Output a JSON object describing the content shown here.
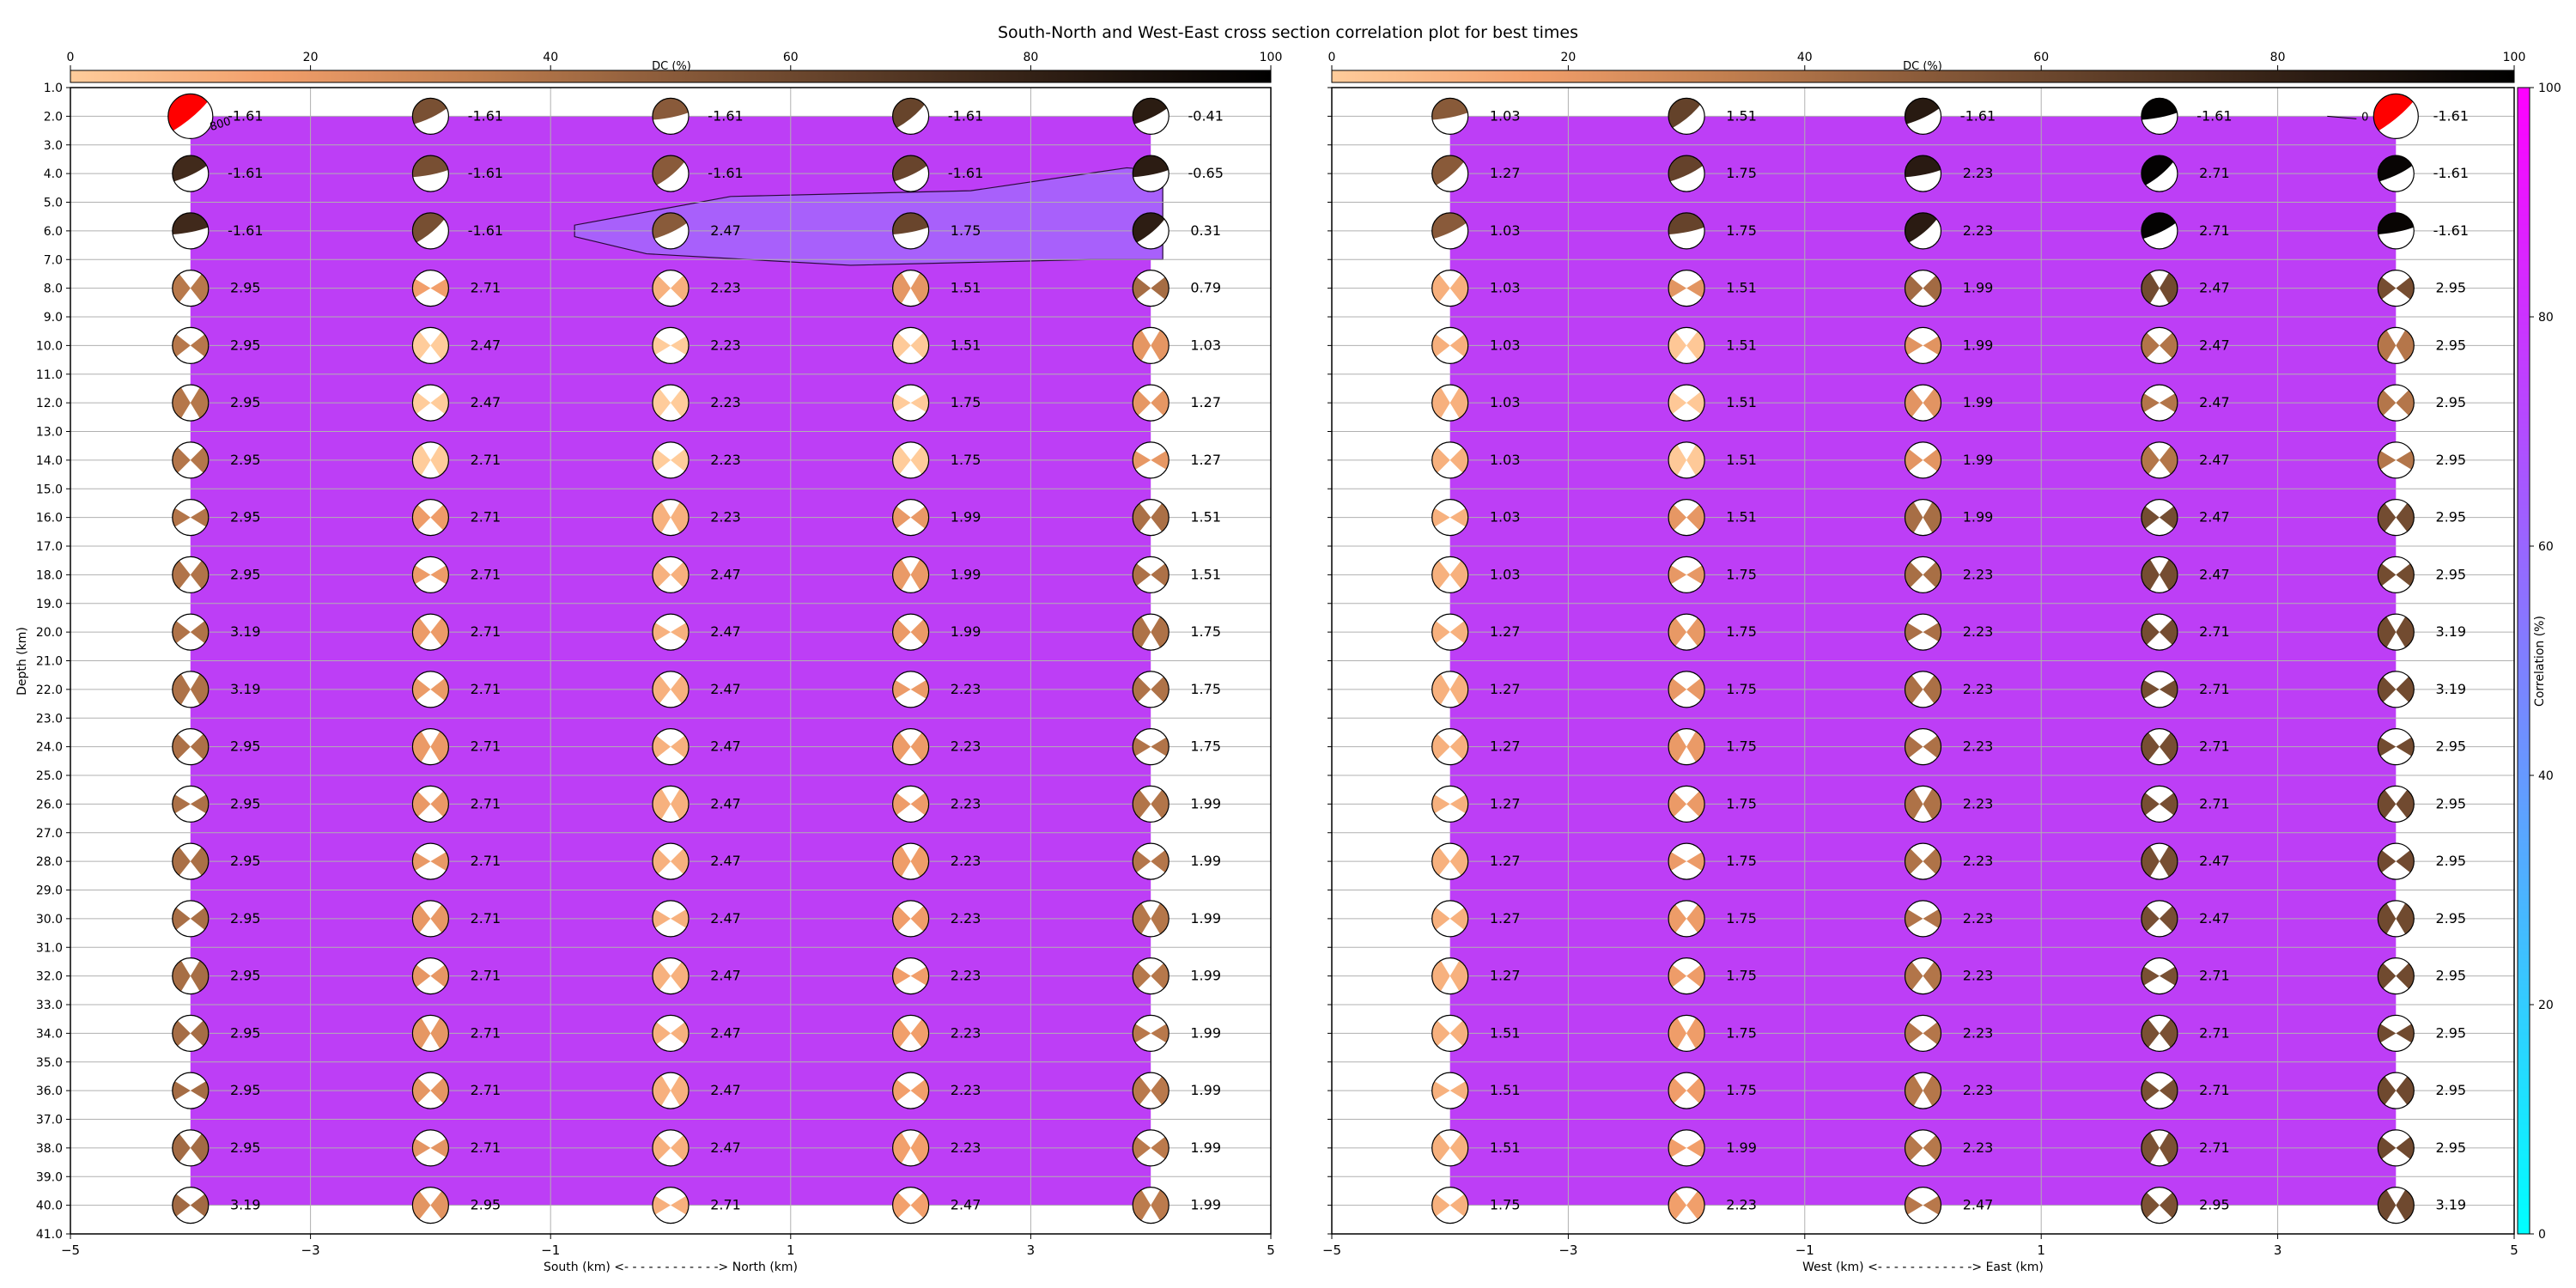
{
  "figure": {
    "title": "South-North and West-East cross section correlation plot for best times"
  },
  "colors": {
    "correlation_fill": "#bd3ef6",
    "contour_fill": "#a860fb",
    "beachball_red": "#ff0000",
    "dc_cmap": [
      "#ffcc9b",
      "#f29f6b",
      "#c27f4f",
      "#8a5b3a",
      "#5a3b26",
      "#2a1b12",
      "#000000"
    ],
    "corr_cmap": [
      "#00ffff",
      "#7f7fff",
      "#ff00ff"
    ]
  },
  "dc_colorbar": {
    "label": "DC (%)",
    "ticks": [
      "0",
      "20",
      "40",
      "60",
      "80",
      "100"
    ]
  },
  "corr_colorbar": {
    "label": "Correlation (%)",
    "ticks": [
      "0",
      "20",
      "40",
      "60",
      "80",
      "100"
    ]
  },
  "chart_data": [
    {
      "type": "scatter",
      "name": "south-north",
      "xlabel": "South (km) <- - - - - - - - - - - -> North (km)",
      "ylabel": "Depth (km)",
      "xlim": [
        -5,
        5
      ],
      "ylim": [
        41,
        1
      ],
      "xticks": [
        -5,
        -3,
        -1,
        1,
        3,
        5
      ],
      "yticks": [
        "1.0",
        "2.0",
        "3.0",
        "4.0",
        "5.0",
        "6.0",
        "7.0",
        "8.0",
        "9.0",
        "10.0",
        "11.0",
        "12.0",
        "13.0",
        "14.0",
        "15.0",
        "16.0",
        "17.0",
        "18.0",
        "19.0",
        "20.0",
        "21.0",
        "22.0",
        "23.0",
        "24.0",
        "25.0",
        "26.0",
        "27.0",
        "28.0",
        "29.0",
        "30.0",
        "31.0",
        "32.0",
        "33.0",
        "34.0",
        "35.0",
        "36.0",
        "37.0",
        "38.0",
        "39.0",
        "40.0",
        "41.0"
      ],
      "x_positions": [
        -4,
        -2,
        0,
        2,
        4
      ],
      "depths": [
        2,
        4,
        6,
        8,
        10,
        12,
        14,
        16,
        18,
        20,
        22,
        24,
        26,
        28,
        30,
        32,
        34,
        36,
        38,
        40
      ],
      "time_shift_labels": [
        [
          "-1.61",
          "-1.61",
          "-1.61",
          "-1.61",
          "-0.41"
        ],
        [
          "-1.61",
          "-1.61",
          "-1.61",
          "-1.61",
          "-0.65"
        ],
        [
          "-1.61",
          "-1.61",
          "2.47",
          "1.75",
          "0.31"
        ],
        [
          "2.95",
          "2.71",
          "2.23",
          "1.51",
          "0.79"
        ],
        [
          "2.95",
          "2.47",
          "2.23",
          "1.51",
          "1.03"
        ],
        [
          "2.95",
          "2.47",
          "2.23",
          "1.75",
          "1.27"
        ],
        [
          "2.95",
          "2.71",
          "2.23",
          "1.75",
          "1.27"
        ],
        [
          "2.95",
          "2.71",
          "2.23",
          "1.99",
          "1.51"
        ],
        [
          "2.95",
          "2.71",
          "2.47",
          "1.99",
          "1.51"
        ],
        [
          "3.19",
          "2.71",
          "2.47",
          "1.99",
          "1.75"
        ],
        [
          "3.19",
          "2.71",
          "2.47",
          "2.23",
          "1.75"
        ],
        [
          "2.95",
          "2.71",
          "2.47",
          "2.23",
          "1.75"
        ],
        [
          "2.95",
          "2.71",
          "2.47",
          "2.23",
          "1.99"
        ],
        [
          "2.95",
          "2.71",
          "2.47",
          "2.23",
          "1.99"
        ],
        [
          "2.95",
          "2.71",
          "2.47",
          "2.23",
          "1.99"
        ],
        [
          "2.95",
          "2.71",
          "2.47",
          "2.23",
          "1.99"
        ],
        [
          "2.95",
          "2.71",
          "2.47",
          "2.23",
          "1.99"
        ],
        [
          "2.95",
          "2.71",
          "2.47",
          "2.23",
          "1.99"
        ],
        [
          "2.95",
          "2.71",
          "2.47",
          "2.23",
          "1.99"
        ],
        [
          "3.19",
          "2.95",
          "2.71",
          "2.47",
          "1.99"
        ]
      ],
      "correlation_region": {
        "x": [
          -4,
          4
        ],
        "depth": [
          2,
          40
        ]
      },
      "contour_label": "800",
      "contour_polygon": [
        [
          -0.8,
          6.2
        ],
        [
          -0.2,
          6.8
        ],
        [
          1.5,
          7.2
        ],
        [
          3.5,
          7.0
        ],
        [
          4.1,
          7.0
        ],
        [
          4.1,
          3.9
        ],
        [
          3.8,
          3.8
        ],
        [
          2.5,
          4.6
        ],
        [
          0.5,
          4.8
        ],
        [
          -0.8,
          5.8
        ]
      ],
      "highlight": {
        "x": -4,
        "depth": 2
      }
    },
    {
      "type": "scatter",
      "name": "west-east",
      "xlabel": "West (km) <- - - - - - - - - - - -> East (km)",
      "xlim": [
        -5,
        5
      ],
      "ylim": [
        41,
        1
      ],
      "xticks": [
        -5,
        -3,
        -1,
        1,
        3,
        5
      ],
      "x_positions": [
        -4,
        -2,
        0,
        2,
        4
      ],
      "depths": [
        2,
        4,
        6,
        8,
        10,
        12,
        14,
        16,
        18,
        20,
        22,
        24,
        26,
        28,
        30,
        32,
        34,
        36,
        38,
        40
      ],
      "time_shift_labels": [
        [
          "1.03",
          "1.51",
          "-1.61",
          "-1.61",
          "-1.61"
        ],
        [
          "1.27",
          "1.75",
          "2.23",
          "2.71",
          "-1.61"
        ],
        [
          "1.03",
          "1.75",
          "2.23",
          "2.71",
          "-1.61"
        ],
        [
          "1.03",
          "1.51",
          "1.99",
          "2.47",
          "2.95"
        ],
        [
          "1.03",
          "1.51",
          "1.99",
          "2.47",
          "2.95"
        ],
        [
          "1.03",
          "1.51",
          "1.99",
          "2.47",
          "2.95"
        ],
        [
          "1.03",
          "1.51",
          "1.99",
          "2.47",
          "2.95"
        ],
        [
          "1.03",
          "1.51",
          "1.99",
          "2.47",
          "2.95"
        ],
        [
          "1.03",
          "1.75",
          "2.23",
          "2.47",
          "2.95"
        ],
        [
          "1.27",
          "1.75",
          "2.23",
          "2.71",
          "3.19"
        ],
        [
          "1.27",
          "1.75",
          "2.23",
          "2.71",
          "3.19"
        ],
        [
          "1.27",
          "1.75",
          "2.23",
          "2.71",
          "2.95"
        ],
        [
          "1.27",
          "1.75",
          "2.23",
          "2.71",
          "2.95"
        ],
        [
          "1.27",
          "1.75",
          "2.23",
          "2.47",
          "2.95"
        ],
        [
          "1.27",
          "1.75",
          "2.23",
          "2.47",
          "2.95"
        ],
        [
          "1.27",
          "1.75",
          "2.23",
          "2.71",
          "2.95"
        ],
        [
          "1.51",
          "1.75",
          "2.23",
          "2.71",
          "2.95"
        ],
        [
          "1.51",
          "1.75",
          "2.23",
          "2.71",
          "2.95"
        ],
        [
          "1.51",
          "1.99",
          "2.23",
          "2.71",
          "2.95"
        ],
        [
          "1.75",
          "2.23",
          "2.47",
          "2.95",
          "3.19"
        ]
      ],
      "correlation_region": {
        "x": [
          -4,
          4
        ],
        "depth": [
          2,
          40
        ]
      },
      "contour_label": "0",
      "highlight": {
        "x": 4,
        "depth": 2
      }
    }
  ]
}
